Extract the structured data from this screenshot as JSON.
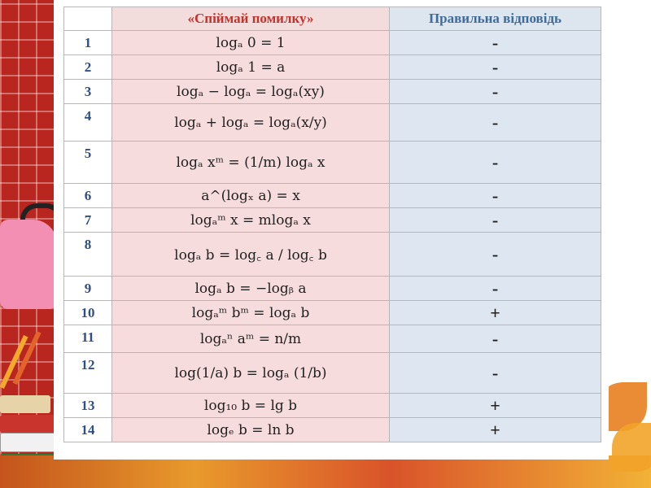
{
  "table": {
    "headers": {
      "number": "",
      "task": "«Спіймай помилку»",
      "answer": "Правильна відповідь"
    },
    "rows": [
      {
        "n": "1",
        "formula": "logₐ 0 = 1",
        "answer": "-"
      },
      {
        "n": "2",
        "formula": "logₐ 1 = a",
        "answer": "-"
      },
      {
        "n": "3",
        "formula": "logₐ − logₐ = logₐ(xy)",
        "answer": "-"
      },
      {
        "n": "4",
        "formula": "logₐ + logₐ = logₐ(x/y)",
        "answer": "-"
      },
      {
        "n": "5",
        "formula": "logₐ xᵐ = (1/m) logₐ x",
        "answer": "-"
      },
      {
        "n": "6",
        "formula": "a^(logₓ a) = x",
        "answer": "-"
      },
      {
        "n": "7",
        "formula": "logₐᵐ x = mlogₐ x",
        "answer": "-"
      },
      {
        "n": "8",
        "formula": "logₐ b = log꜀ a / log꜀ b",
        "answer": "-"
      },
      {
        "n": "9",
        "formula": "logₐ b = −logᵦ a",
        "answer": "-"
      },
      {
        "n": "10",
        "formula": "logₐᵐ bᵐ = logₐ b",
        "answer": "+"
      },
      {
        "n": "11",
        "formula": "logₐⁿ aᵐ = n/m",
        "answer": "-"
      },
      {
        "n": "12",
        "formula": "log(1/a) b = logₐ (1/b)",
        "answer": "-"
      },
      {
        "n": "13",
        "formula": "log₁₀ b = lg b",
        "answer": "+"
      },
      {
        "n": "14",
        "formula": "logₑ b = ln b",
        "answer": "+"
      }
    ]
  },
  "colors": {
    "header_task": "#c2332d",
    "header_answer": "#3f6b9b",
    "row_numbers": "#2f4f86",
    "task_cell_bg": "#f6dcdc",
    "answer_cell_bg": "#dde6f1"
  }
}
